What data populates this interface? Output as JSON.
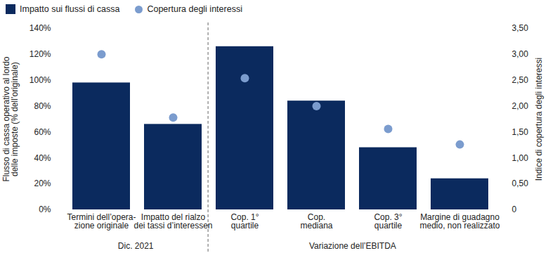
{
  "chart_data": {
    "type": "bar",
    "categories": [
      "Termini dell’opera-\nzione originale",
      "Impatto del rialzo\ndei tassi d’interessen",
      "Cop. 1°\nquartile",
      "Cop.\nmediana",
      "Cop. 3°\nquartile",
      "Margine di guadagno\nmedio, non realizzato"
    ],
    "groups": [
      {
        "label": "Dic. 2021",
        "categories": [
          "Termini dell’opera-\nzione originale",
          "Impatto del rialzo\ndei tassi d’interessen"
        ]
      },
      {
        "label": "Variazione dell’EBITDA",
        "categories": [
          "Cop. 1°\nquartile",
          "Cop.\nmediana",
          "Cop. 3°\nquartile",
          "Margine di guadagno\nmedio, non realizzato"
        ]
      }
    ],
    "series": [
      {
        "name": "Impatto sui flussi di cassa",
        "type": "bar",
        "color": "#0b2a5e",
        "values": [
          98,
          66,
          126,
          84,
          48,
          24
        ]
      },
      {
        "name": "Copertura degli interessi",
        "type": "scatter",
        "marker": "circle",
        "color": "#7b9cce",
        "axis": "y2",
        "values": [
          3.0,
          1.78,
          2.54,
          2.0,
          1.56,
          1.26
        ]
      }
    ],
    "ylabel": "Flusso di cassa operativo al lordo\ndelle imposte (% dell’originale)",
    "y2label": "Indice di copertura degli interessi",
    "ylim": [
      0,
      140
    ],
    "yticks": [
      {
        "value": 0,
        "label": "0%"
      },
      {
        "value": 20,
        "label": "20%"
      },
      {
        "value": 40,
        "label": "40%"
      },
      {
        "value": 60,
        "label": "60%"
      },
      {
        "value": 80,
        "label": "80%"
      },
      {
        "value": 100,
        "label": "100%"
      },
      {
        "value": 120,
        "label": "120%"
      },
      {
        "value": 140,
        "label": "140%"
      }
    ],
    "y2lim": [
      0,
      3.5
    ],
    "y2ticks": [
      0,
      {
        "value": 0.5,
        "label": "0,50"
      },
      {
        "value": 1,
        "label": "1,00"
      },
      {
        "value": 1.5,
        "label": "1,50"
      },
      {
        "value": 2,
        "label": "2,00"
      },
      {
        "value": 2.5,
        "label": "2,50"
      },
      {
        "value": 3,
        "label": "3,00"
      },
      {
        "value": 3.5,
        "label": "3,50"
      }
    ],
    "grid": false,
    "legend": "top-left"
  }
}
